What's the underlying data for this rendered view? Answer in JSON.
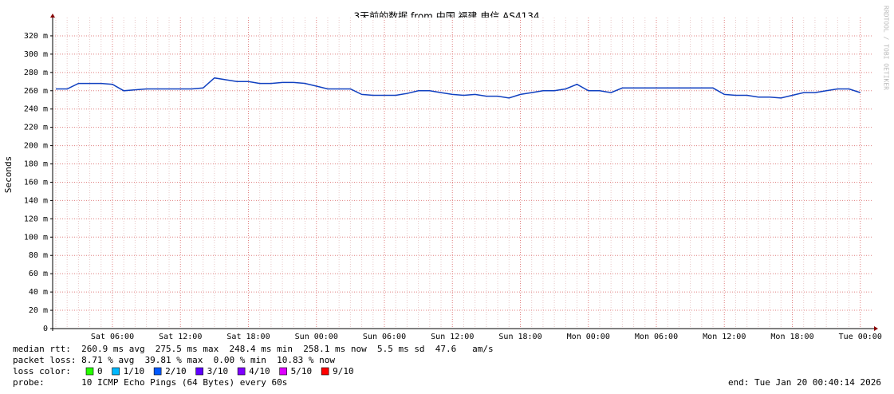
{
  "chart_data": {
    "type": "line",
    "title": "3天前的数据 from 中国 福建 电信 AS4134",
    "y_label": "Seconds",
    "watermark": "RRDTOOL / TOBI OETIKER",
    "categories": [
      null,
      null,
      null,
      null,
      null,
      "Sat 06:00",
      null,
      null,
      null,
      null,
      null,
      "Sat 12:00",
      null,
      null,
      null,
      null,
      null,
      "Sat 18:00",
      null,
      null,
      null,
      null,
      null,
      "Sun 00:00",
      null,
      null,
      null,
      null,
      null,
      "Sun 06:00",
      null,
      null,
      null,
      null,
      null,
      "Sun 12:00",
      null,
      null,
      null,
      null,
      null,
      "Sun 18:00",
      null,
      null,
      null,
      null,
      null,
      "Mon 00:00",
      null,
      null,
      null,
      null,
      null,
      "Mon 06:00",
      null,
      null,
      null,
      null,
      null,
      "Mon 12:00",
      null,
      null,
      null,
      null,
      null,
      "Mon 18:00",
      null,
      null,
      null,
      null,
      null,
      "Tue 00:00"
    ],
    "series": [
      {
        "color": "#1040c0",
        "values": [
          0.262,
          0.262,
          0.268,
          0.268,
          0.268,
          0.267,
          0.26,
          0.261,
          0.262,
          0.262,
          0.262,
          0.262,
          0.262,
          0.263,
          0.274,
          0.272,
          0.27,
          0.27,
          0.268,
          0.268,
          0.269,
          0.269,
          0.268,
          0.265,
          0.262,
          0.262,
          0.262,
          0.256,
          0.255,
          0.255,
          0.255,
          0.257,
          0.26,
          0.26,
          0.258,
          0.256,
          0.255,
          0.256,
          0.254,
          0.254,
          0.252,
          0.256,
          0.258,
          0.26,
          0.26,
          0.262,
          0.267,
          0.26,
          0.26,
          0.258,
          0.263,
          0.263,
          0.263,
          0.263,
          0.263,
          0.263,
          0.263,
          0.263,
          0.263,
          0.256,
          0.255,
          0.255,
          0.253,
          0.253,
          0.252,
          0.255,
          0.258,
          0.258,
          0.26,
          0.262,
          0.262,
          0.258
        ]
      }
    ],
    "ylim": [
      0,
      0.34
    ],
    "yticks": [
      0,
      {
        "value": 0.02,
        "label": "20 m"
      },
      {
        "value": 0.04,
        "label": "40 m"
      },
      {
        "value": 0.06,
        "label": "60 m"
      },
      {
        "value": 0.08,
        "label": "80 m"
      },
      {
        "value": 0.1,
        "label": "100 m"
      },
      {
        "value": 0.12,
        "label": "120 m"
      },
      {
        "value": 0.14,
        "label": "140 m"
      },
      {
        "value": 0.16,
        "label": "160 m"
      },
      {
        "value": 0.18,
        "label": "180 m"
      },
      {
        "value": 0.2,
        "label": "200 m"
      },
      {
        "value": 0.22,
        "label": "220 m"
      },
      {
        "value": 0.24,
        "label": "240 m"
      },
      {
        "value": 0.26,
        "label": "260 m"
      },
      {
        "value": 0.28,
        "label": "280 m"
      },
      {
        "value": 0.3,
        "label": "300 m"
      },
      {
        "value": 0.32,
        "label": "320 m"
      }
    ],
    "grid": true,
    "legend": {
      "rtt": "median rtt:  260.9 ms avg  275.5 ms max  248.4 ms min  258.1 ms now  5.5 ms sd  47.6   am/s",
      "loss": "packet loss: 8.71 % avg  39.81 % max  0.00 % min  10.83 % now",
      "loss_color_label": "loss color:",
      "loss_colors": [
        {
          "label": "0",
          "color": "#26ff00"
        },
        {
          "label": "1/10",
          "color": "#00b8ff"
        },
        {
          "label": "2/10",
          "color": "#0059ff"
        },
        {
          "label": "3/10",
          "color": "#5e00ff"
        },
        {
          "label": "4/10",
          "color": "#7e00ff"
        },
        {
          "label": "5/10",
          "color": "#dd00ff"
        },
        {
          "label": "9/10",
          "color": "#ff0000"
        }
      ],
      "probe": "probe:       10 ICMP Echo Pings (64 Bytes) every 60s",
      "end": "end: Tue Jan 20 00:40:14 2026"
    }
  }
}
